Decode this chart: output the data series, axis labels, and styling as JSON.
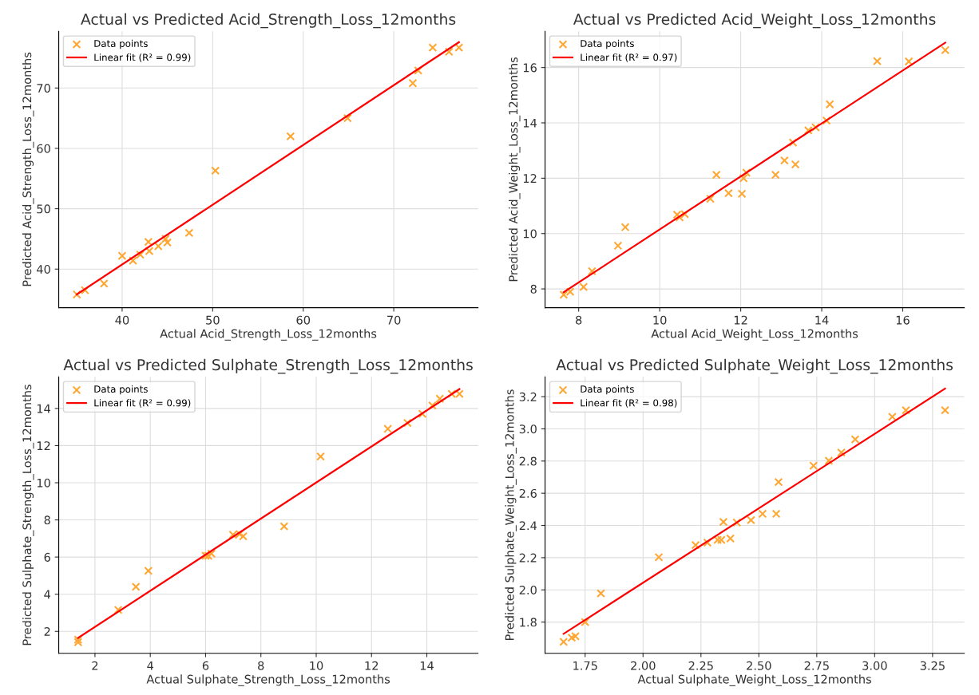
{
  "chart_data": [
    {
      "type": "scatter",
      "title": "Actual vs Predicted Acid_Strength_Loss_12months",
      "xlabel": "Actual Acid_Strength_Loss_12months",
      "ylabel": "Predicted Acid_Strength_Loss_12months",
      "xlim": [
        33.0,
        79.3
      ],
      "ylim": [
        33.6,
        79.4
      ],
      "xticks": [
        40,
        50,
        60,
        70
      ],
      "yticks": [
        40,
        50,
        60,
        70
      ],
      "grid": true,
      "legend": "top left",
      "series": [
        {
          "name": "Data points",
          "marker": "cross",
          "color": "#ffa733",
          "x": [
            35.0,
            35.9,
            38.0,
            40.0,
            41.2,
            42.0,
            42.9,
            43.0,
            44.0,
            44.8,
            45.0,
            47.4,
            50.3,
            58.6,
            64.9,
            72.1,
            72.7,
            74.3,
            76.1,
            77.2
          ],
          "values": [
            35.8,
            36.5,
            37.6,
            42.2,
            41.4,
            42.4,
            44.5,
            43.0,
            43.8,
            45.0,
            44.4,
            46.0,
            56.3,
            62.0,
            65.0,
            70.8,
            72.9,
            76.7,
            76.0,
            76.7
          ]
        },
        {
          "name": "Linear fit (R² = 0.99)",
          "type": "line",
          "color": "#ff0000",
          "x": [
            35.0,
            77.2
          ],
          "values": [
            35.8,
            77.6
          ]
        }
      ]
    },
    {
      "type": "scatter",
      "title": "Actual vs Predicted Acid_Weight_Loss_12months",
      "xlabel": "Actual Acid_Weight_Loss_12months",
      "ylabel": "Predicted Acid_Weight_Loss_12months",
      "xlim": [
        7.17,
        17.52
      ],
      "ylim": [
        7.32,
        17.31
      ],
      "xticks": [
        8,
        10,
        12,
        14,
        16
      ],
      "yticks": [
        8,
        10,
        12,
        14,
        16
      ],
      "grid": true,
      "legend": "top left",
      "series": [
        {
          "name": "Data points",
          "marker": "cross",
          "color": "#ffa733",
          "x": [
            7.63,
            7.79,
            8.12,
            8.33,
            8.97,
            9.15,
            10.43,
            10.49,
            10.62,
            11.25,
            11.4,
            11.7,
            12.03,
            12.07,
            12.14,
            12.86,
            13.08,
            13.29,
            13.35,
            13.67,
            13.85,
            14.12,
            14.2,
            15.37,
            16.15,
            17.05
          ],
          "values": [
            7.79,
            7.9,
            8.07,
            8.64,
            9.56,
            10.23,
            10.68,
            10.59,
            10.7,
            11.26,
            12.12,
            11.46,
            11.44,
            12.0,
            12.2,
            12.12,
            12.64,
            13.29,
            12.5,
            13.73,
            13.84,
            14.08,
            14.67,
            16.23,
            16.22,
            16.63
          ]
        },
        {
          "name": "Linear fit (R² = 0.97)",
          "type": "line",
          "color": "#ff0000",
          "x": [
            7.63,
            17.05
          ],
          "values": [
            7.88,
            16.9
          ]
        }
      ]
    },
    {
      "type": "scatter",
      "title": "Actual vs Predicted Sulphate_Strength_Loss_12months",
      "xlabel": "Actual Sulphate_Strength_Loss_12months",
      "ylabel": "Predicted Sulphate_Strength_Loss_12months",
      "xlim": [
        0.69,
        15.85
      ],
      "ylim": [
        0.82,
        15.7
      ],
      "xticks": [
        2,
        4,
        6,
        8,
        10,
        12,
        14
      ],
      "yticks": [
        2,
        4,
        6,
        8,
        10,
        12,
        14
      ],
      "grid": true,
      "legend": "top left",
      "series": [
        {
          "name": "Data points",
          "marker": "cross",
          "color": "#ffa733",
          "x": [
            1.39,
            1.39,
            2.84,
            3.48,
            3.93,
            6.0,
            6.1,
            6.21,
            6.99,
            7.23,
            7.36,
            8.84,
            10.16,
            12.59,
            13.3,
            13.84,
            14.2,
            14.47,
            14.9,
            15.18
          ],
          "values": [
            1.55,
            1.42,
            3.16,
            4.4,
            5.26,
            6.07,
            6.07,
            6.18,
            7.2,
            7.24,
            7.12,
            7.65,
            11.41,
            12.9,
            13.22,
            13.71,
            14.16,
            14.52,
            14.78,
            14.78
          ]
        },
        {
          "name": "Linear fit (R² = 0.99)",
          "type": "line",
          "color": "#ff0000",
          "x": [
            1.39,
            15.18
          ],
          "values": [
            1.65,
            15.04
          ]
        }
      ]
    },
    {
      "type": "scatter",
      "title": "Actual vs Predicted Sulphate_Weight_Loss_12months",
      "xlabel": "Actual Sulphate_Weight_Loss_12months",
      "ylabel": "Predicted Sulphate_Weight_Loss_12months",
      "xlim": [
        1.577,
        3.387
      ],
      "ylim": [
        1.606,
        3.323
      ],
      "xticks": [
        {
          "value": 1.75,
          "label": "1.75"
        },
        {
          "value": 2.0,
          "label": "2.00"
        },
        {
          "value": 2.25,
          "label": "2.25"
        },
        {
          "value": 2.5,
          "label": "2.50"
        },
        {
          "value": 2.75,
          "label": "2.75"
        },
        {
          "value": 3.0,
          "label": "3.00"
        },
        {
          "value": 3.25,
          "label": "3.25"
        }
      ],
      "yticks": [
        1.8,
        {
          "value": 2.0,
          "label": "2.0"
        },
        2.2,
        2.4,
        2.6,
        2.8,
        {
          "value": 3.0,
          "label": "3.0"
        },
        3.2
      ],
      "grid": true,
      "legend": "top left",
      "series": [
        {
          "name": "Data points",
          "marker": "cross",
          "color": "#ffa733",
          "x": [
            1.657,
            1.692,
            1.708,
            1.75,
            1.818,
            2.068,
            2.227,
            2.278,
            2.322,
            2.338,
            2.347,
            2.377,
            2.405,
            2.466,
            2.516,
            2.575,
            2.585,
            2.736,
            2.802,
            2.856,
            2.916,
            3.076,
            3.135,
            3.304
          ],
          "values": [
            1.677,
            1.703,
            1.712,
            1.8,
            1.978,
            2.203,
            2.278,
            2.293,
            2.31,
            2.31,
            2.422,
            2.319,
            2.418,
            2.433,
            2.472,
            2.472,
            2.67,
            2.771,
            2.802,
            2.853,
            2.935,
            3.075,
            3.116,
            3.116
          ]
        },
        {
          "name": "Linear fit (R² = 0.98)",
          "type": "line",
          "color": "#ff0000",
          "x": [
            1.657,
            3.304
          ],
          "values": [
            1.727,
            3.25
          ]
        }
      ]
    }
  ]
}
